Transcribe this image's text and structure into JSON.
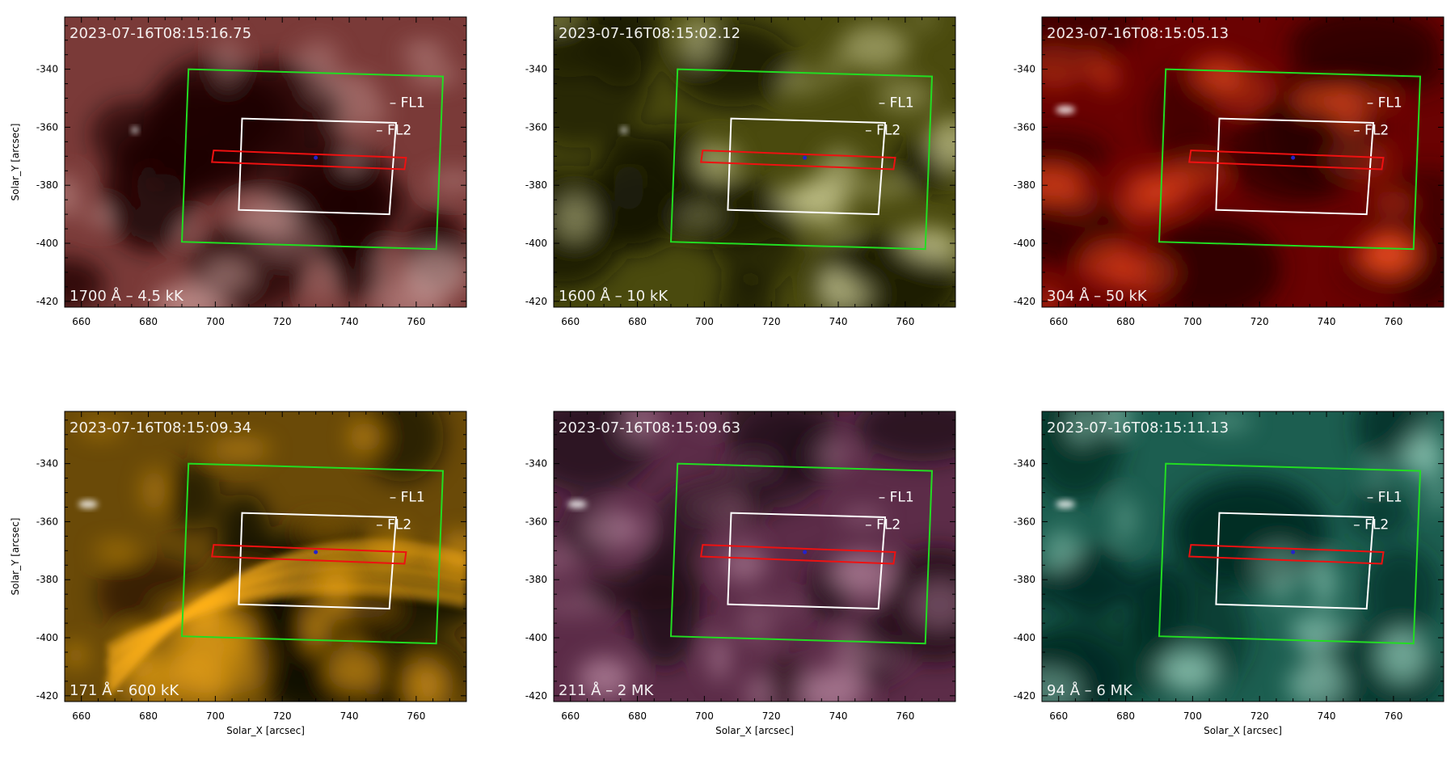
{
  "figure": {
    "x_axis": {
      "label": "Solar_X [arcsec]",
      "range": [
        655,
        775
      ],
      "ticks": [
        660,
        680,
        700,
        720,
        740,
        760
      ]
    },
    "y_axis": {
      "label": "Solar_Y [arcsec]",
      "range": [
        -422,
        -322
      ],
      "ticks": [
        -340,
        -360,
        -380,
        -400,
        -420
      ]
    },
    "overlay_labels": {
      "fl1": "FL1",
      "fl2": "FL2"
    },
    "overlays": {
      "green_box": [
        [
          692,
          -340
        ],
        [
          768,
          -342.5
        ],
        [
          766,
          -402
        ],
        [
          690,
          -399.5
        ]
      ],
      "white_box": [
        [
          708,
          -357
        ],
        [
          754,
          -358.5
        ],
        [
          752,
          -390
        ],
        [
          707,
          -388.5
        ]
      ],
      "red_slit": [
        [
          699.5,
          -368
        ],
        [
          757,
          -370.5
        ],
        [
          756.5,
          -374.5
        ],
        [
          699,
          -372
        ]
      ],
      "blue_marker": [
        730,
        -370.5
      ],
      "fl1_label_pos": [
        752,
        -353
      ],
      "fl2_label_pos": [
        748,
        -362.5
      ]
    },
    "colors": {
      "green_box": "#22dd22",
      "white_box": "#ffffff",
      "red_slit": "#ee1111",
      "blue_marker": "#2222cc"
    },
    "panels": [
      {
        "id": "aia1700",
        "timestamp": "2023-07-16T08:15:16.75",
        "channel": "1700 Å – 4.5 kK",
        "colormap": "aia1700",
        "colors": {
          "dark": "#1e0606",
          "mid": "#7a3a38",
          "light": "#e2b8b4"
        },
        "show_ylabel": true,
        "show_xlabel": false
      },
      {
        "id": "aia1600",
        "timestamp": "2023-07-16T08:15:02.12",
        "channel": "1600 Å – 10 kK",
        "colormap": "aia1600",
        "colors": {
          "dark": "#151500",
          "mid": "#4a4a0e",
          "light": "#d8d8a0"
        },
        "show_ylabel": false,
        "show_xlabel": false
      },
      {
        "id": "aia304",
        "timestamp": "2023-07-16T08:15:05.13",
        "channel": "304 Å – 50 kK",
        "colormap": "aia304",
        "colors": {
          "dark": "#2a0000",
          "mid": "#6a0202",
          "light": "#ff5522"
        },
        "show_ylabel": false,
        "show_xlabel": false
      },
      {
        "id": "aia171",
        "timestamp": "2023-07-16T08:15:09.34",
        "channel": "171 Å – 600 kK",
        "colormap": "aia171",
        "colors": {
          "dark": "#120b00",
          "mid": "#6a4a08",
          "light": "#ffb21a"
        },
        "show_ylabel": true,
        "show_xlabel": true
      },
      {
        "id": "aia211",
        "timestamp": "2023-07-16T08:15:09.63",
        "channel": "211 Å – 2 MK",
        "colormap": "aia211",
        "colors": {
          "dark": "#220c18",
          "mid": "#5c2c48",
          "light": "#c898b0"
        },
        "show_ylabel": false,
        "show_xlabel": true
      },
      {
        "id": "aia94",
        "timestamp": "2023-07-16T08:15:11.13",
        "channel": "94 Å – 6 MK",
        "colormap": "aia94",
        "colors": {
          "dark": "#062a22",
          "mid": "#1c5e50",
          "light": "#a8e0cc"
        },
        "show_ylabel": false,
        "show_xlabel": true
      }
    ]
  }
}
